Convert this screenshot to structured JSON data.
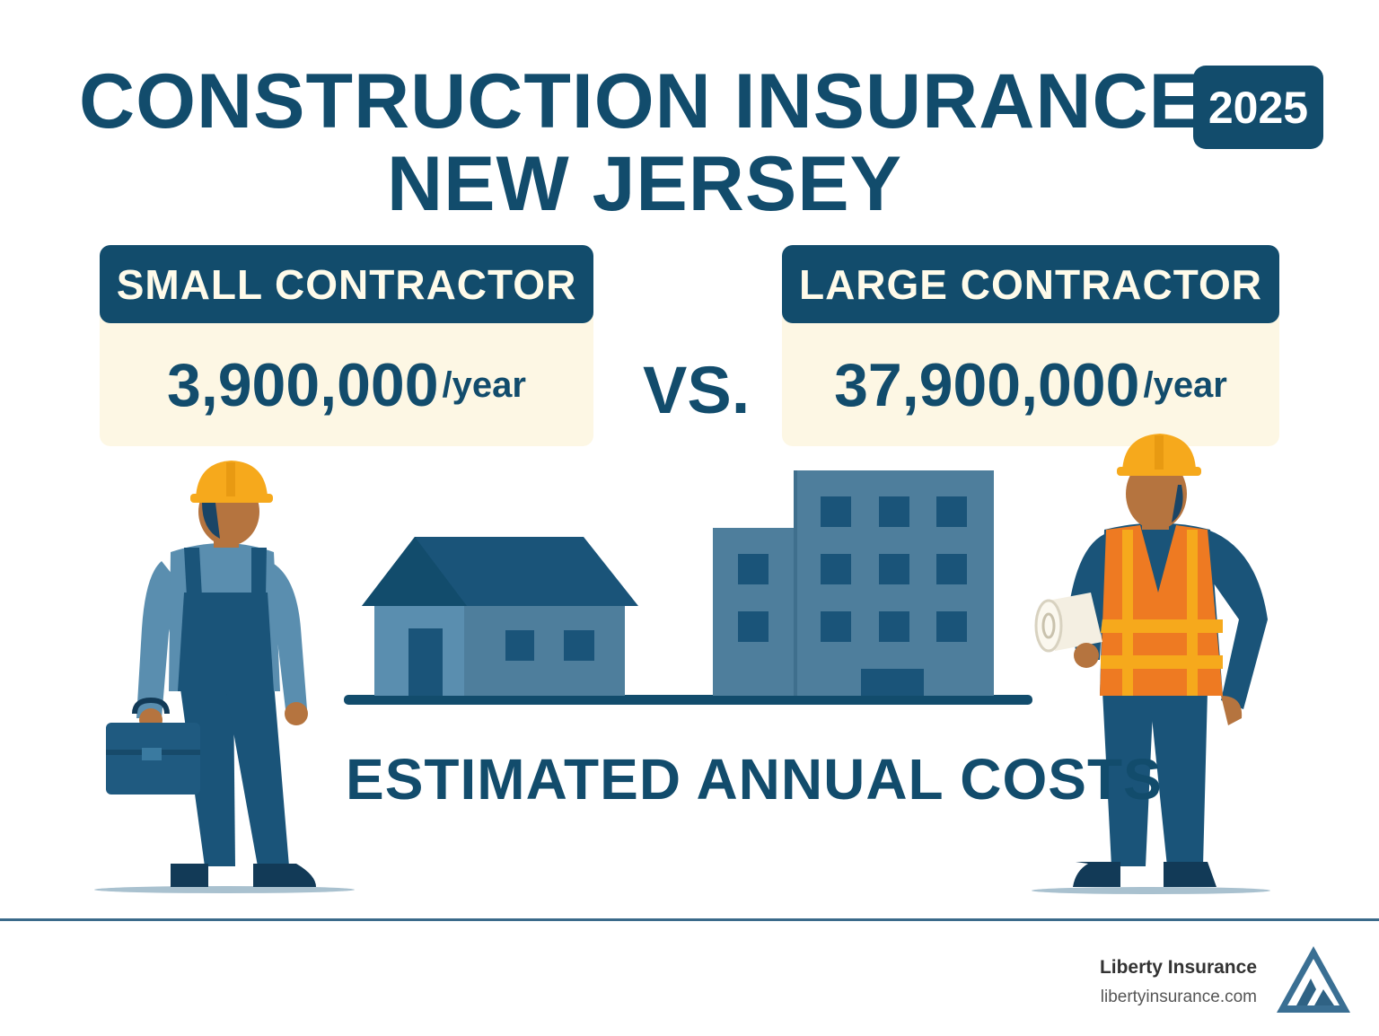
{
  "header": {
    "title_line1": "CONSTRUCTION INSURANCE",
    "title_line2": "NEW JERSEY",
    "year": "2025"
  },
  "comparison": {
    "left": {
      "label": "SMALL CONTRACTOR",
      "amount": "3,900,000",
      "unit": "/year"
    },
    "separator": "VS.",
    "right": {
      "label": "LARGE CONTRACTOR",
      "amount": "37,900,000",
      "unit": "/year"
    }
  },
  "caption": "ESTIMATED ANNUAL COSTS",
  "footer": {
    "brand": "Liberty Insurance",
    "website": "libertyinsurance.com"
  },
  "colors": {
    "navy": "#124c6c",
    "slate": "#4e7e9c",
    "cream": "#fdf7e4",
    "helmet": "#f6a91c",
    "vest": "#ee7a22"
  },
  "icons": [
    "worker-icon",
    "house-icon",
    "building-icon",
    "foreman-icon",
    "logo-icon"
  ]
}
